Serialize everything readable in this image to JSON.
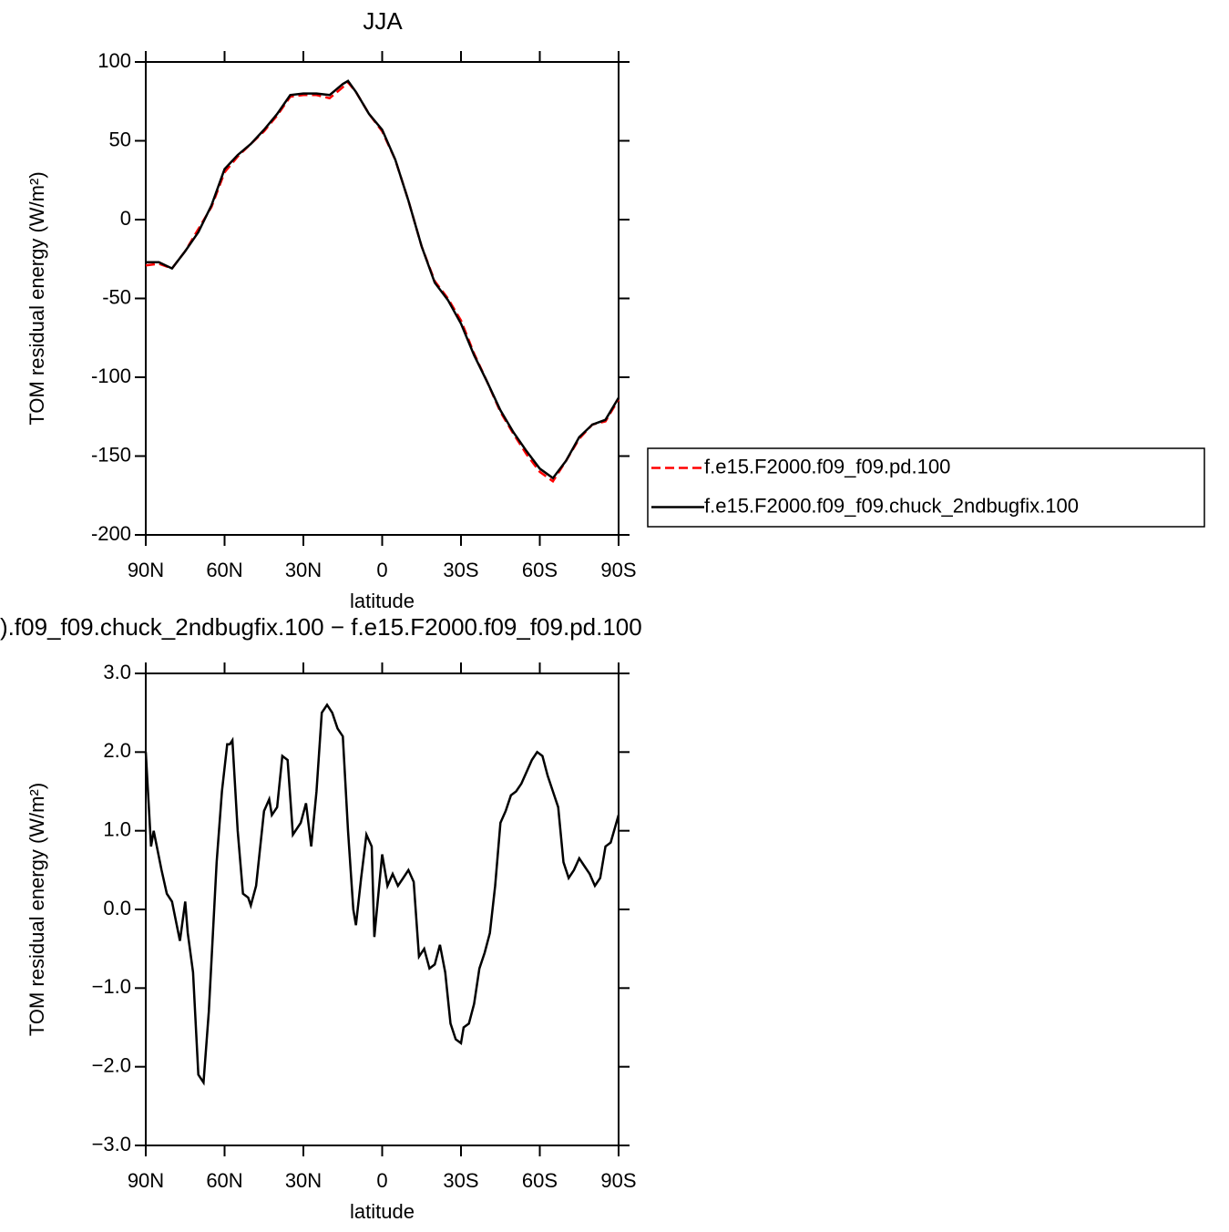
{
  "chart_data": [
    {
      "type": "line",
      "title": "JJA",
      "xlabel": "latitude",
      "ylabel": "TOM residual energy (W/m²)",
      "x": [
        90,
        85,
        80,
        75,
        70,
        65,
        60,
        55,
        50,
        45,
        40,
        35,
        30,
        25,
        20,
        15,
        13,
        10,
        5,
        0,
        -5,
        -10,
        -15,
        -20,
        -25,
        -30,
        -35,
        -40,
        -45,
        -50,
        -55,
        -60,
        -65,
        -70,
        -75,
        -80,
        -85,
        -90
      ],
      "series": [
        {
          "name": "f.e15.F2000.f09_f09.pd.100",
          "color": "#ff0000",
          "linestyle": "dashed",
          "values": [
            -29,
            -28,
            -31,
            -20,
            -6,
            8,
            30,
            40,
            48,
            56,
            66,
            78,
            79,
            79,
            77,
            84,
            87,
            81,
            67,
            56,
            38,
            12,
            -17,
            -39,
            -50,
            -64,
            -85,
            -103,
            -122,
            -136,
            -149,
            -160,
            -166,
            -153,
            -139,
            -130,
            -128,
            -114
          ]
        },
        {
          "name": "f.e15.F2000.f09_f09.chuck_2ndbugfix.100",
          "color": "#000000",
          "linestyle": "solid",
          "values": [
            -27,
            -27,
            -31,
            -20,
            -8,
            9,
            32,
            41,
            48,
            57,
            67,
            79,
            80,
            80,
            79,
            86,
            88,
            81,
            67,
            57,
            38,
            12,
            -17,
            -40,
            -51,
            -66,
            -86,
            -103,
            -121,
            -135,
            -147,
            -158,
            -164,
            -153,
            -138,
            -130,
            -127,
            -113
          ]
        }
      ],
      "xlim": [
        90,
        -90
      ],
      "xticks": [
        {
          "value": 90,
          "label": "90N"
        },
        {
          "value": 60,
          "label": "60N"
        },
        {
          "value": 30,
          "label": "30N"
        },
        0,
        {
          "value": -30,
          "label": "30S"
        },
        {
          "value": -60,
          "label": "60S"
        },
        {
          "value": -90,
          "label": "90S"
        }
      ],
      "ylim": [
        -200,
        100
      ],
      "yticks": [
        -200,
        -150,
        -100,
        -50,
        0,
        50,
        100
      ],
      "legend": "right"
    },
    {
      "type": "line",
      "title": ").f09_f09.chuck_2ndbugfix.100 − f.e15.F2000.f09_f09.pd.100",
      "xlabel": "latitude",
      "ylabel": "TOM residual energy (W/m²)",
      "x": [
        90,
        88,
        87,
        84,
        82,
        80,
        77,
        75,
        74,
        72,
        70,
        68,
        66,
        63,
        61,
        59,
        58,
        57,
        55,
        53,
        51,
        50,
        48,
        45,
        43,
        42,
        40,
        38,
        36,
        34,
        31,
        29,
        27,
        25,
        23,
        21,
        19,
        17,
        15,
        13,
        11,
        10,
        8,
        6,
        4,
        3,
        1,
        0,
        -2,
        -4,
        -6,
        -8,
        -10,
        -12,
        -14,
        -16,
        -18,
        -20,
        -22,
        -24,
        -26,
        -28,
        -30,
        -31,
        -33,
        -35,
        -37,
        -39,
        -41,
        -43,
        -45,
        -47,
        -49,
        -51,
        -53,
        -55,
        -57,
        -59,
        -61,
        -63,
        -65,
        -67,
        -69,
        -71,
        -73,
        -75,
        -77,
        -79,
        -81,
        -83,
        -85,
        -87,
        -90
      ],
      "values": [
        2.0,
        0.8,
        1.0,
        0.5,
        0.2,
        0.1,
        -0.4,
        0.1,
        -0.3,
        -0.8,
        -2.1,
        -2.2,
        -1.3,
        0.6,
        1.5,
        2.1,
        2.1,
        2.15,
        1.0,
        0.2,
        0.15,
        0.05,
        0.3,
        1.25,
        1.4,
        1.2,
        1.3,
        1.95,
        1.9,
        0.95,
        1.1,
        1.35,
        0.8,
        1.5,
        2.5,
        2.6,
        2.5,
        2.3,
        2.2,
        1.0,
        0.0,
        -0.2,
        0.4,
        0.95,
        0.8,
        -0.35,
        0.35,
        0.7,
        0.3,
        0.45,
        0.3,
        0.4,
        0.5,
        0.35,
        -0.6,
        -0.5,
        -0.75,
        -0.7,
        -0.45,
        -0.8,
        -1.45,
        -1.65,
        -1.7,
        -1.5,
        -1.45,
        -1.2,
        -0.75,
        -0.55,
        -0.3,
        0.3,
        1.1,
        1.25,
        1.45,
        1.5,
        1.6,
        1.75,
        1.9,
        2.0,
        1.95,
        1.7,
        1.5,
        1.3,
        0.6,
        0.4,
        0.5,
        0.65,
        0.55,
        0.45,
        0.3,
        0.4,
        0.8,
        0.85,
        1.2
      ],
      "color": "#000000",
      "xlim": [
        90,
        -90
      ],
      "xticks": [
        {
          "value": 90,
          "label": "90N"
        },
        {
          "value": 60,
          "label": "60N"
        },
        {
          "value": 30,
          "label": "30N"
        },
        0,
        {
          "value": -30,
          "label": "30S"
        },
        {
          "value": -60,
          "label": "60S"
        },
        {
          "value": -90,
          "label": "90S"
        }
      ],
      "ylim": [
        -3,
        3
      ],
      "yticks": [
        {
          "value": -3,
          "label": "−3.0"
        },
        {
          "value": -2,
          "label": "−2.0"
        },
        {
          "value": -1,
          "label": "−1.0"
        },
        {
          "value": 0,
          "label": "0.0"
        },
        {
          "value": 1,
          "label": "1.0"
        },
        {
          "value": 2,
          "label": "2.0"
        },
        {
          "value": 3,
          "label": "3.0"
        }
      ]
    }
  ]
}
